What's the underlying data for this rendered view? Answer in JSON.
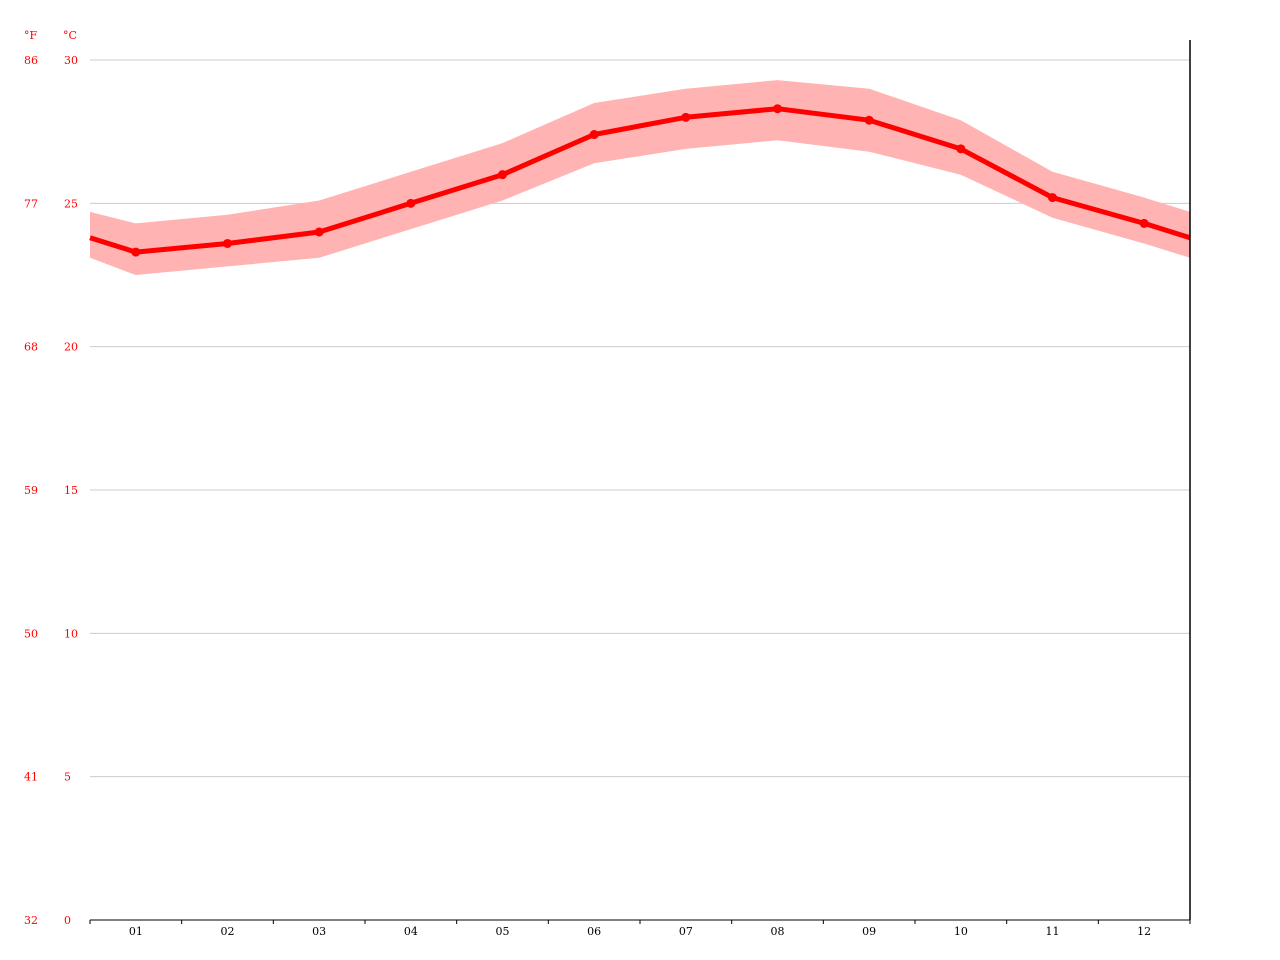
{
  "chart_data": {
    "type": "line",
    "title": "",
    "xlabel": "",
    "ylabel": "",
    "categories": [
      "01",
      "02",
      "03",
      "04",
      "05",
      "06",
      "07",
      "08",
      "09",
      "10",
      "11",
      "12"
    ],
    "series": [
      {
        "values": [
          23.3,
          23.6,
          24.0,
          25.0,
          26.0,
          27.4,
          28.0,
          28.3,
          27.9,
          26.9,
          25.2,
          24.3
        ],
        "band_high": [
          24.3,
          24.6,
          25.1,
          26.1,
          27.1,
          28.5,
          29.0,
          29.3,
          29.0,
          27.9,
          26.1,
          25.2
        ],
        "band_low": [
          22.5,
          22.8,
          23.1,
          24.1,
          25.1,
          26.4,
          26.9,
          27.2,
          26.8,
          26.0,
          24.5,
          23.6
        ],
        "edge_left": {
          "value": 23.8,
          "high": 24.7,
          "low": 23.1
        },
        "edge_right": {
          "value": 23.8,
          "high": 24.7,
          "low": 23.1
        }
      }
    ],
    "ylim": [
      0,
      30
    ],
    "y_ticks_c": [
      "0",
      "5",
      "10",
      "15",
      "20",
      "25",
      "30"
    ],
    "y_ticks_f": [
      "32",
      "41",
      "50",
      "59",
      "68",
      "77",
      "86"
    ],
    "unit_f": "°F",
    "unit_c": "°C",
    "grid": true,
    "colors": {
      "line": "#ff0000",
      "band": "#ffb3b3",
      "axis_text": "#ff0000",
      "grid": "#cccccc"
    }
  }
}
